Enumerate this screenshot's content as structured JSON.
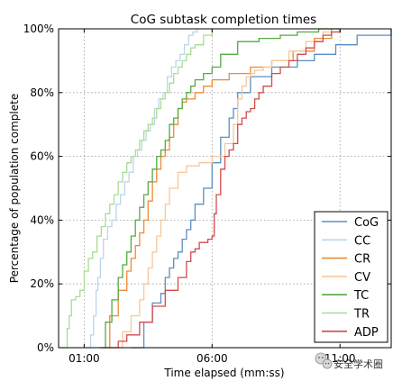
{
  "chart_data": {
    "type": "line",
    "title": "CoG subtask completion times",
    "xlabel": "Time elapsed (mm:ss)",
    "ylabel": "Percentage of population complete",
    "x_unit": "seconds",
    "xlim": [
      0,
      780
    ],
    "ylim": [
      0,
      100
    ],
    "x_ticks": [
      {
        "value": 60,
        "label": "01:00"
      },
      {
        "value": 360,
        "label": "06:00"
      },
      {
        "value": 660,
        "label": "11:00"
      }
    ],
    "y_ticks": [
      {
        "value": 0,
        "label": "0%"
      },
      {
        "value": 20,
        "label": "20%"
      },
      {
        "value": 40,
        "label": "40%"
      },
      {
        "value": 60,
        "label": "60%"
      },
      {
        "value": 80,
        "label": "80%"
      },
      {
        "value": 100,
        "label": "100%"
      }
    ],
    "grid": true,
    "legend_position": "lower-right",
    "series": [
      {
        "name": "CoG",
        "color": "#5b8fbf",
        "x": [
          170,
          200,
          220,
          240,
          250,
          260,
          270,
          280,
          290,
          300,
          310,
          320,
          340,
          360,
          380,
          400,
          410,
          420,
          450,
          500,
          560,
          600,
          650,
          700,
          780
        ],
        "y": [
          0,
          8,
          14,
          17,
          22,
          25,
          28,
          30,
          34,
          37,
          40,
          45,
          50,
          58,
          66,
          72,
          75,
          80,
          85,
          88,
          90,
          92,
          95,
          98,
          100
        ]
      },
      {
        "name": "CC",
        "color": "#bcd6e8",
        "x": [
          65,
          75,
          82,
          88,
          92,
          98,
          105,
          115,
          125,
          135,
          145,
          155,
          165,
          175,
          185,
          195,
          205,
          215,
          225,
          235,
          245,
          255,
          265,
          275,
          285,
          295,
          305,
          315,
          325
        ],
        "y": [
          0,
          4,
          10,
          18,
          22,
          28,
          34,
          38,
          40,
          45,
          48,
          52,
          55,
          60,
          62,
          65,
          68,
          70,
          75,
          78,
          80,
          85,
          88,
          90,
          92,
          95,
          98,
          99,
          100
        ]
      },
      {
        "name": "CR",
        "color": "#ef8a33",
        "x": [
          100,
          120,
          140,
          160,
          170,
          180,
          190,
          200,
          210,
          220,
          230,
          240,
          250,
          260,
          270,
          280,
          290,
          300,
          320,
          340,
          360,
          400,
          450,
          500,
          550,
          600,
          640
        ],
        "y": [
          0,
          10,
          18,
          24,
          28,
          32,
          36,
          40,
          46,
          52,
          56,
          60,
          62,
          66,
          70,
          75,
          77,
          78,
          80,
          82,
          84,
          86,
          88,
          90,
          93,
          97,
          100
        ]
      },
      {
        "name": "CV",
        "color": "#f7c89a",
        "x": [
          120,
          150,
          170,
          190,
          200,
          210,
          220,
          230,
          240,
          250,
          260,
          280,
          300,
          330,
          360,
          390,
          410,
          420,
          430,
          440,
          450,
          460,
          480,
          500,
          540,
          580,
          620,
          660
        ],
        "y": [
          0,
          5,
          10,
          15,
          20,
          25,
          30,
          35,
          40,
          45,
          50,
          55,
          57,
          58,
          60,
          64,
          70,
          78,
          82,
          85,
          86,
          87,
          88,
          90,
          93,
          96,
          99,
          100
        ]
      },
      {
        "name": "TC",
        "color": "#55aa44",
        "x": [
          95,
          110,
          125,
          140,
          150,
          160,
          170,
          180,
          190,
          200,
          210,
          220,
          230,
          240,
          250,
          260,
          270,
          280,
          290,
          300,
          310,
          320,
          340,
          360,
          380,
          420,
          470,
          520,
          560,
          610,
          660
        ],
        "y": [
          0,
          8,
          15,
          22,
          26,
          30,
          35,
          40,
          44,
          48,
          52,
          56,
          60,
          62,
          65,
          70,
          72,
          75,
          78,
          80,
          82,
          84,
          86,
          88,
          92,
          96,
          97,
          98,
          99,
          100,
          100
        ]
      },
      {
        "name": "TR",
        "color": "#a8dc94",
        "x": [
          0,
          20,
          25,
          30,
          40,
          50,
          60,
          70,
          80,
          90,
          100,
          110,
          120,
          130,
          140,
          150,
          160,
          170,
          180,
          190,
          200,
          210,
          220,
          230,
          240,
          250,
          260,
          270,
          280,
          290,
          300,
          310,
          320,
          340,
          360
        ],
        "y": [
          0,
          6,
          10,
          15,
          16,
          18,
          24,
          28,
          30,
          35,
          38,
          42,
          45,
          48,
          52,
          55,
          58,
          60,
          62,
          65,
          68,
          70,
          72,
          75,
          78,
          80,
          83,
          86,
          88,
          90,
          92,
          94,
          95,
          98,
          100
        ]
      },
      {
        "name": "ADP",
        "color": "#d24b4b",
        "x": [
          110,
          140,
          160,
          190,
          220,
          250,
          280,
          300,
          310,
          320,
          330,
          350,
          360,
          365,
          370,
          380,
          390,
          400,
          410,
          420,
          430,
          440,
          450,
          460,
          470,
          480,
          500,
          520,
          540,
          560,
          580,
          600,
          620,
          640,
          660
        ],
        "y": [
          0,
          2,
          4,
          8,
          13,
          18,
          22,
          27,
          30,
          31,
          33,
          34,
          35,
          42,
          48,
          56,
          60,
          62,
          64,
          70,
          72,
          74,
          75,
          78,
          80,
          82,
          86,
          88,
          90,
          92,
          94,
          96,
          98,
          99,
          100
        ]
      }
    ]
  },
  "watermark": {
    "text": "安全学术圈",
    "icon": "wechat-logo-icon"
  }
}
